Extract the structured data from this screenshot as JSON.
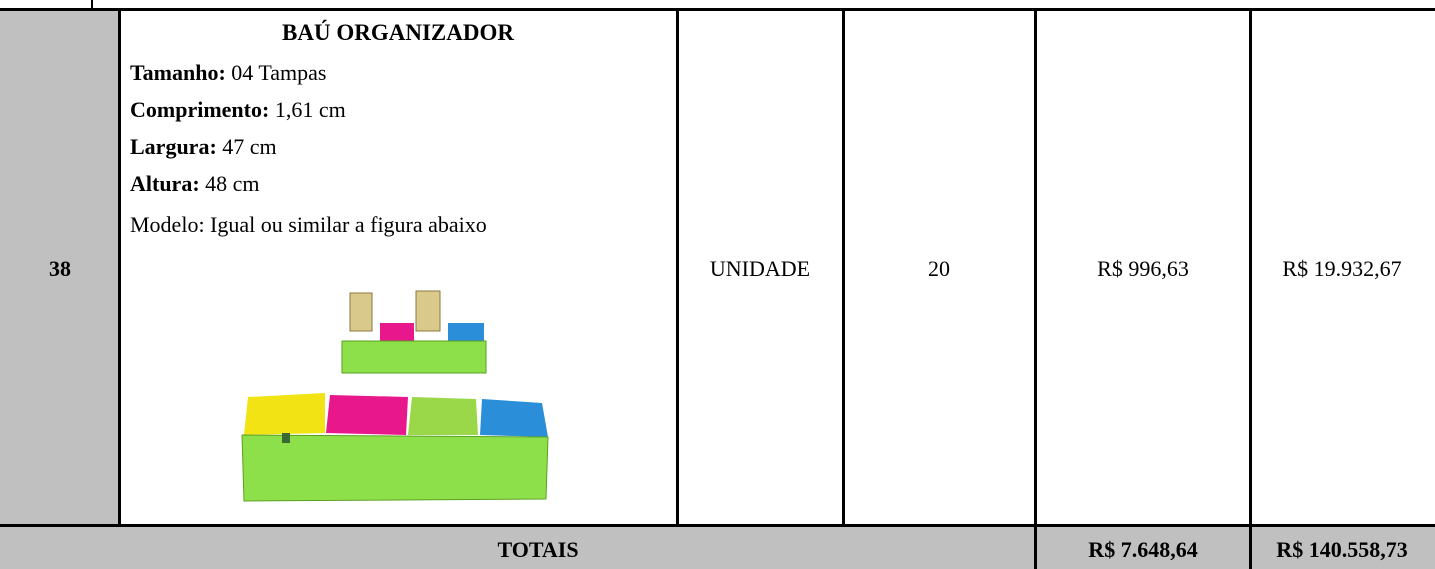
{
  "table": {
    "row": {
      "item": "38",
      "title": "BAÚ ORGANIZADOR",
      "specs": [
        {
          "label": "Tamanho:",
          "value": "04 Tampas"
        },
        {
          "label": "Comprimento:",
          "value": "1,61 cm"
        },
        {
          "label": "Largura:",
          "value": "47 cm"
        },
        {
          "label": "Altura:",
          "value": "48 cm"
        }
      ],
      "model": "Modelo: Igual ou similar a figura abaixo",
      "unit": "UNIDADE",
      "quantity": "20",
      "unit_price": "R$ 996,63",
      "total_price": "R$ 19.932,67"
    },
    "totals": {
      "label": "TOTAIS",
      "unit_price": "R$ 7.648,64",
      "total_price": "R$ 140.558,73"
    }
  }
}
